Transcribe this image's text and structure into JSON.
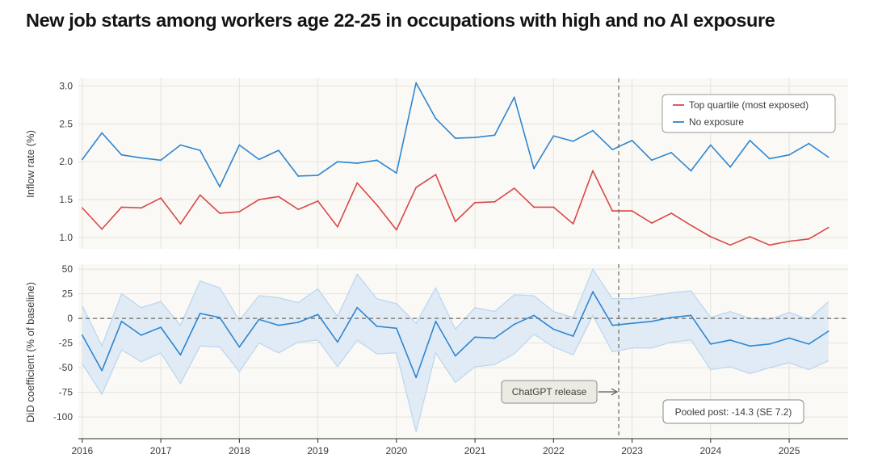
{
  "title": "New job starts among workers age 22-25 in occupations with high and no AI exposure",
  "colors": {
    "exposed": "#d94848",
    "none": "#2f86d0",
    "band": "#dce9f6",
    "band_edge": "#b9d6ef",
    "panel_bg": "#faf9f5",
    "grid": "#e6e3da",
    "axis": "#5a5a55",
    "annotation_bg": "#ecebe3"
  },
  "chart_data": [
    {
      "type": "line",
      "panel": "top",
      "ylabel": "Inflow rate (%)",
      "xlabel": "",
      "xlim": [
        2015.95,
        2025.75
      ],
      "ylim": [
        0.85,
        3.1
      ],
      "yticks": [
        1.0,
        1.5,
        2.0,
        2.5,
        3.0
      ],
      "ytick_labels": [
        "1.0",
        "1.5",
        "2.0",
        "2.5",
        "3.0"
      ],
      "xticks": [
        2016,
        2017,
        2018,
        2019,
        2020,
        2021,
        2022,
        2023,
        2024,
        2025
      ],
      "grid": true,
      "legend_position": "top-right",
      "x": [
        2016.0,
        2016.25,
        2016.5,
        2016.75,
        2017.0,
        2017.25,
        2017.5,
        2017.75,
        2018.0,
        2018.25,
        2018.5,
        2018.75,
        2019.0,
        2019.25,
        2019.5,
        2019.75,
        2020.0,
        2020.25,
        2020.5,
        2020.75,
        2021.0,
        2021.25,
        2021.5,
        2021.75,
        2022.0,
        2022.25,
        2022.5,
        2022.75,
        2023.0,
        2023.25,
        2023.5,
        2023.75,
        2024.0,
        2024.25,
        2024.5,
        2024.75,
        2025.0,
        2025.25,
        2025.5
      ],
      "series": [
        {
          "name": "Top quartile (most exposed)",
          "color": "#d94848",
          "values": [
            1.39,
            1.11,
            1.4,
            1.39,
            1.52,
            1.18,
            1.56,
            1.32,
            1.34,
            1.5,
            1.54,
            1.37,
            1.48,
            1.14,
            1.72,
            1.43,
            1.1,
            1.66,
            1.83,
            1.21,
            1.46,
            1.47,
            1.65,
            1.4,
            1.4,
            1.18,
            1.88,
            1.35,
            1.35,
            1.19,
            1.32,
            1.16,
            1.01,
            0.9,
            1.01,
            0.9,
            0.95,
            0.98,
            1.13
          ]
        },
        {
          "name": "No exposure",
          "color": "#2f86d0",
          "values": [
            2.03,
            2.38,
            2.09,
            2.05,
            2.02,
            2.22,
            2.15,
            1.67,
            2.22,
            2.03,
            2.15,
            1.81,
            1.82,
            2.0,
            1.98,
            2.02,
            1.85,
            3.04,
            2.57,
            2.31,
            2.32,
            2.35,
            2.85,
            1.91,
            2.34,
            2.27,
            2.41,
            2.16,
            2.28,
            2.02,
            2.12,
            1.88,
            2.22,
            1.93,
            2.28,
            2.04,
            2.09,
            2.24,
            2.06
          ]
        }
      ],
      "vline": {
        "x": 2022.83,
        "label": "ChatGPT release"
      }
    },
    {
      "type": "line",
      "panel": "bottom",
      "ylabel": "DiD coefficient (% of baseline)",
      "xlabel": "",
      "xlim": [
        2015.95,
        2025.75
      ],
      "ylim": [
        -122,
        55
      ],
      "yticks": [
        -100,
        -75,
        -50,
        -25,
        0,
        25,
        50
      ],
      "ytick_labels": [
        "-100",
        "-75",
        "-50",
        "-25",
        "0",
        "25",
        "50"
      ],
      "xticks": [
        2016,
        2017,
        2018,
        2019,
        2020,
        2021,
        2022,
        2023,
        2024,
        2025
      ],
      "xtick_labels": [
        "2016",
        "2017",
        "2018",
        "2019",
        "2020",
        "2021",
        "2022",
        "2023",
        "2024",
        "2025"
      ],
      "grid": true,
      "zero_line": 0,
      "x": [
        2016.0,
        2016.25,
        2016.5,
        2016.75,
        2017.0,
        2017.25,
        2017.5,
        2017.75,
        2018.0,
        2018.25,
        2018.5,
        2018.75,
        2019.0,
        2019.25,
        2019.5,
        2019.75,
        2020.0,
        2020.25,
        2020.5,
        2020.75,
        2021.0,
        2021.25,
        2021.5,
        2021.75,
        2022.0,
        2022.25,
        2022.5,
        2022.75,
        2023.0,
        2023.25,
        2023.5,
        2023.75,
        2024.0,
        2024.25,
        2024.5,
        2024.75,
        2025.0,
        2025.25,
        2025.5
      ],
      "series": [
        {
          "name": "DiD coefficient",
          "color": "#2f86d0",
          "values": [
            -17,
            -53,
            -3,
            -17,
            -9,
            -37,
            5,
            1,
            -29,
            -1,
            -7,
            -4,
            4,
            -24,
            11,
            -8,
            -10,
            -60,
            -3,
            -38,
            -19,
            -20,
            -6,
            3,
            -11,
            -18,
            27,
            -7,
            -5,
            -3,
            1,
            3,
            -26,
            -22,
            -28,
            -26,
            -20,
            -26,
            -13
          ]
        }
      ],
      "ci_lower": [
        -46,
        -77,
        -32,
        -44,
        -35,
        -66,
        -28,
        -29,
        -54,
        -25,
        -35,
        -24,
        -22,
        -49,
        -22,
        -36,
        -35,
        -115,
        -35,
        -65,
        -49,
        -47,
        -36,
        -16,
        -29,
        -37,
        3,
        -34,
        -30,
        -30,
        -24,
        -22,
        -52,
        -49,
        -56,
        -50,
        -45,
        -52,
        -43
      ],
      "ci_upper": [
        13,
        -28,
        25,
        11,
        17,
        -7,
        38,
        31,
        -2,
        23,
        21,
        16,
        30,
        2,
        45,
        20,
        15,
        -5,
        31,
        -11,
        11,
        7,
        24,
        23,
        7,
        1,
        50,
        20,
        20,
        23,
        26,
        28,
        1,
        7,
        0,
        -1,
        6,
        -1,
        17
      ],
      "annotations": [
        {
          "text": "ChatGPT release",
          "at_x": 2022.83,
          "at_y": -75,
          "arrow": "right"
        },
        {
          "text": "Pooled post: -14.3 (SE 7.2)",
          "anchor": "bottom-right"
        }
      ]
    }
  ]
}
